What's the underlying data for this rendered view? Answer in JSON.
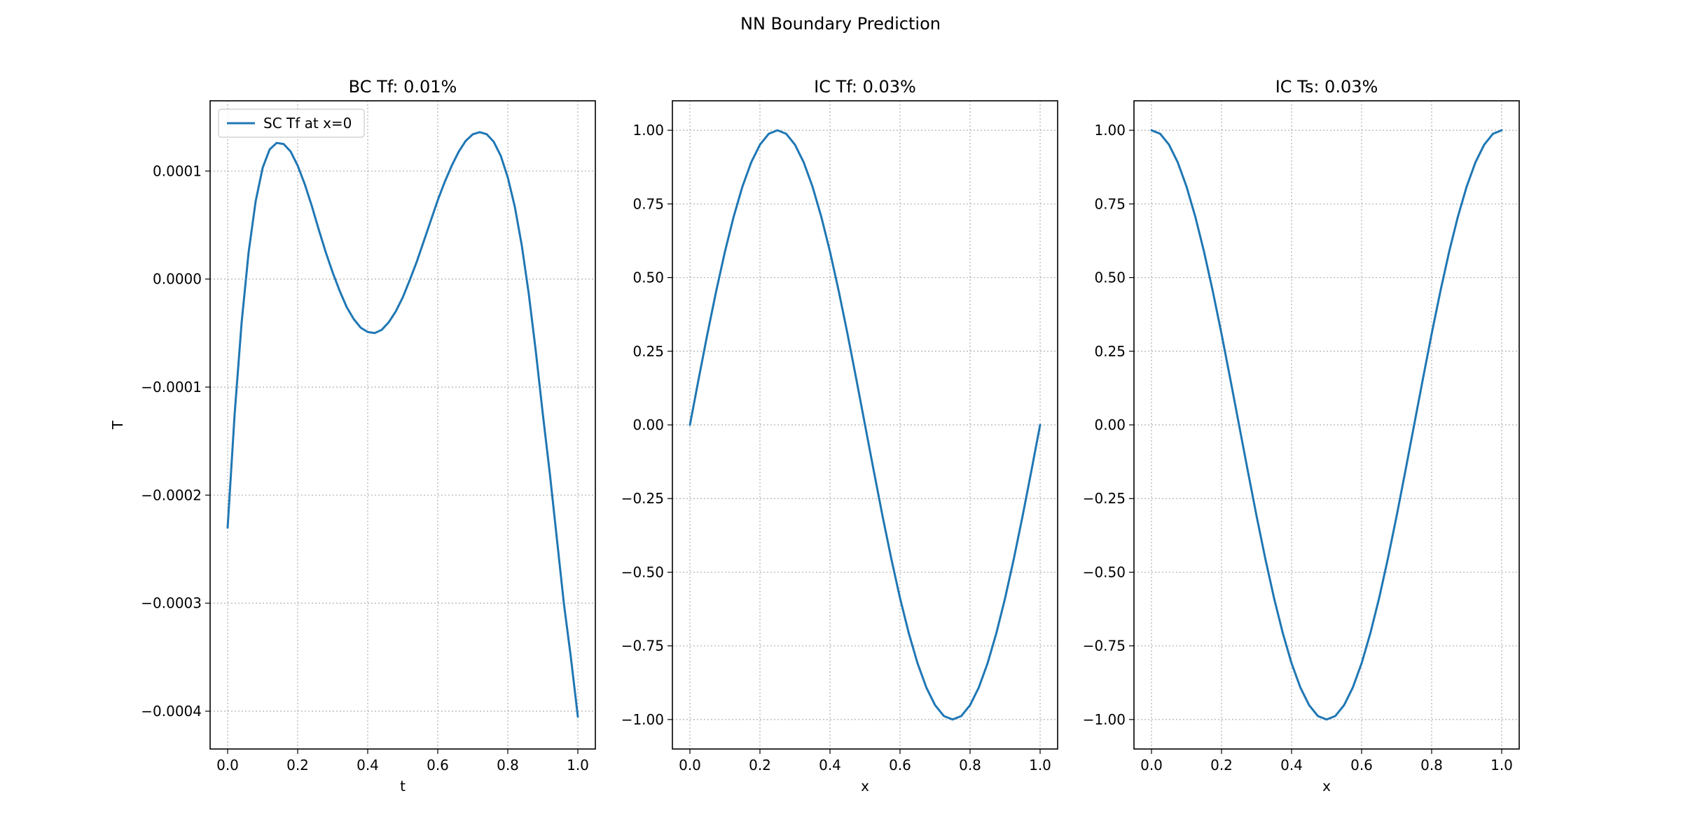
{
  "figure": {
    "title": "NN Boundary Prediction",
    "line_color": "#1f77b4",
    "grid_color": "#b0b0b0",
    "grid": true,
    "grid_style": "dotted"
  },
  "chart_data": [
    {
      "type": "line",
      "title": "BC Tf: 0.01%",
      "xlabel": "t",
      "ylabel": "T",
      "xlim": [
        -0.05,
        1.05
      ],
      "ylim": [
        -0.000435,
        0.000165
      ],
      "xticks": [
        0.0,
        0.2,
        0.4,
        0.6,
        0.8,
        1.0
      ],
      "xtick_labels": [
        "0.0",
        "0.2",
        "0.4",
        "0.6",
        "0.8",
        "1.0"
      ],
      "yticks": [
        0.0001,
        0.0,
        -0.0001,
        -0.0002,
        -0.0003,
        -0.0004
      ],
      "ytick_labels": [
        "0.0001",
        "0.0000",
        "−0.0001",
        "−0.0002",
        "−0.0003",
        "−0.0004"
      ],
      "legend": {
        "position": "top-left",
        "entries": [
          "SC Tf at x=0"
        ]
      },
      "series": [
        {
          "name": "SC Tf at x=0",
          "x": [
            0.0,
            0.02,
            0.04,
            0.06,
            0.08,
            0.1,
            0.12,
            0.14,
            0.16,
            0.18,
            0.2,
            0.22,
            0.24,
            0.26,
            0.28,
            0.3,
            0.32,
            0.34,
            0.36,
            0.38,
            0.4,
            0.42,
            0.44,
            0.46,
            0.48,
            0.5,
            0.52,
            0.54,
            0.56,
            0.58,
            0.6,
            0.62,
            0.64,
            0.66,
            0.68,
            0.7,
            0.72,
            0.74,
            0.76,
            0.78,
            0.8,
            0.82,
            0.84,
            0.86,
            0.88,
            0.9,
            0.92,
            0.94,
            0.96,
            0.98,
            1.0
          ],
          "y": [
            -0.00023,
            -0.000125,
            -4e-05,
            2.5e-05,
            7.2e-05,
            0.000103,
            0.00012,
            0.000126,
            0.000125,
            0.000118,
            0.000105,
            8.8e-05,
            6.8e-05,
            4.6e-05,
            2.5e-05,
            6e-06,
            -1.1e-05,
            -2.6e-05,
            -3.7e-05,
            -4.5e-05,
            -4.9e-05,
            -5e-05,
            -4.7e-05,
            -4e-05,
            -3e-05,
            -1.7e-05,
            -1e-06,
            1.6e-05,
            3.5e-05,
            5.4e-05,
            7.3e-05,
            9e-05,
            0.000105,
            0.000118,
            0.000128,
            0.000134,
            0.000136,
            0.000134,
            0.000127,
            0.000114,
            9.4e-05,
            6.7e-05,
            3.1e-05,
            -1.4e-05,
            -6.7e-05,
            -0.000125,
            -0.00018,
            -0.00024,
            -0.0003,
            -0.00035,
            -0.000405
          ]
        }
      ]
    },
    {
      "type": "line",
      "title": "IC Tf: 0.03%",
      "xlabel": "x",
      "ylabel": "",
      "xlim": [
        -0.05,
        1.05
      ],
      "ylim": [
        -1.1,
        1.1
      ],
      "xticks": [
        0.0,
        0.2,
        0.4,
        0.6,
        0.8,
        1.0
      ],
      "xtick_labels": [
        "0.0",
        "0.2",
        "0.4",
        "0.6",
        "0.8",
        "1.0"
      ],
      "yticks": [
        1.0,
        0.75,
        0.5,
        0.25,
        0.0,
        -0.25,
        -0.5,
        -0.75,
        -1.0
      ],
      "ytick_labels": [
        "1.00",
        "0.75",
        "0.50",
        "0.25",
        "0.00",
        "−0.25",
        "−0.50",
        "−0.75",
        "−1.00"
      ],
      "series": [
        {
          "x": [
            0.0,
            0.025,
            0.05,
            0.075,
            0.1,
            0.125,
            0.15,
            0.175,
            0.2,
            0.225,
            0.25,
            0.275,
            0.3,
            0.325,
            0.35,
            0.375,
            0.4,
            0.425,
            0.45,
            0.475,
            0.5,
            0.525,
            0.55,
            0.575,
            0.6,
            0.625,
            0.65,
            0.675,
            0.7,
            0.725,
            0.75,
            0.775,
            0.8,
            0.825,
            0.85,
            0.875,
            0.9,
            0.925,
            0.95,
            0.975,
            1.0
          ],
          "y": [
            0.0,
            0.156,
            0.309,
            0.454,
            0.588,
            0.707,
            0.809,
            0.891,
            0.951,
            0.988,
            1.0,
            0.988,
            0.951,
            0.891,
            0.809,
            0.707,
            0.588,
            0.454,
            0.309,
            0.156,
            0.0,
            -0.156,
            -0.309,
            -0.454,
            -0.588,
            -0.707,
            -0.809,
            -0.891,
            -0.951,
            -0.988,
            -1.0,
            -0.988,
            -0.951,
            -0.891,
            -0.809,
            -0.707,
            -0.588,
            -0.454,
            -0.309,
            -0.156,
            0.0
          ]
        }
      ]
    },
    {
      "type": "line",
      "title": "IC Ts: 0.03%",
      "xlabel": "x",
      "ylabel": "",
      "xlim": [
        -0.05,
        1.05
      ],
      "ylim": [
        -1.1,
        1.1
      ],
      "xticks": [
        0.0,
        0.2,
        0.4,
        0.6,
        0.8,
        1.0
      ],
      "xtick_labels": [
        "0.0",
        "0.2",
        "0.4",
        "0.6",
        "0.8",
        "1.0"
      ],
      "yticks": [
        1.0,
        0.75,
        0.5,
        0.25,
        0.0,
        -0.25,
        -0.5,
        -0.75,
        -1.0
      ],
      "ytick_labels": [
        "1.00",
        "0.75",
        "0.50",
        "0.25",
        "0.00",
        "−0.25",
        "−0.50",
        "−0.75",
        "−1.00"
      ],
      "series": [
        {
          "x": [
            0.0,
            0.025,
            0.05,
            0.075,
            0.1,
            0.125,
            0.15,
            0.175,
            0.2,
            0.225,
            0.25,
            0.275,
            0.3,
            0.325,
            0.35,
            0.375,
            0.4,
            0.425,
            0.45,
            0.475,
            0.5,
            0.525,
            0.55,
            0.575,
            0.6,
            0.625,
            0.65,
            0.675,
            0.7,
            0.725,
            0.75,
            0.775,
            0.8,
            0.825,
            0.85,
            0.875,
            0.9,
            0.925,
            0.95,
            0.975,
            1.0
          ],
          "y": [
            1.0,
            0.988,
            0.951,
            0.891,
            0.809,
            0.707,
            0.588,
            0.454,
            0.309,
            0.156,
            0.0,
            -0.156,
            -0.309,
            -0.454,
            -0.588,
            -0.707,
            -0.809,
            -0.891,
            -0.951,
            -0.988,
            -1.0,
            -0.988,
            -0.951,
            -0.891,
            -0.809,
            -0.707,
            -0.588,
            -0.454,
            -0.309,
            -0.156,
            0.0,
            0.156,
            0.309,
            0.454,
            0.588,
            0.707,
            0.809,
            0.891,
            0.951,
            0.988,
            1.0
          ]
        }
      ]
    }
  ]
}
